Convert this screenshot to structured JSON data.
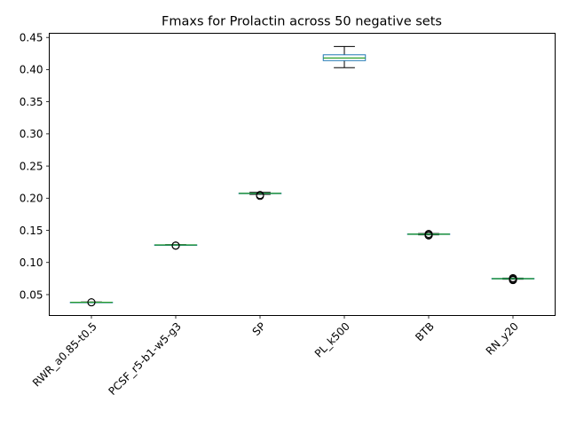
{
  "chart_data": {
    "type": "box",
    "title": "Fmaxs for Prolactin across 50 negative sets",
    "xlabel": "",
    "ylabel": "",
    "categories": [
      "RWR_a0.85-t0.5",
      "PCSF_r5-b1-w5-g3",
      "SP",
      "PL_k500",
      "BTB",
      "RN_y20"
    ],
    "boxes": [
      {
        "whislo": 0.0375,
        "q1": 0.0378,
        "med": 0.038,
        "q3": 0.0382,
        "whishi": 0.0385,
        "fliers": [
          0.038,
          0.038
        ]
      },
      {
        "whislo": 0.1265,
        "q1": 0.127,
        "med": 0.1272,
        "q3": 0.1274,
        "whishi": 0.1278,
        "fliers": [
          0.1262,
          0.1264,
          0.1262
        ]
      },
      {
        "whislo": 0.206,
        "q1": 0.207,
        "med": 0.2075,
        "q3": 0.2078,
        "whishi": 0.209,
        "fliers": [
          0.2035,
          0.205
        ]
      },
      {
        "whislo": 0.403,
        "q1": 0.414,
        "med": 0.418,
        "q3": 0.423,
        "whishi": 0.436,
        "fliers": []
      },
      {
        "whislo": 0.143,
        "q1": 0.1437,
        "med": 0.144,
        "q3": 0.1444,
        "whishi": 0.145,
        "fliers": [
          0.142,
          0.1425,
          0.143,
          0.1445
        ]
      },
      {
        "whislo": 0.074,
        "q1": 0.0745,
        "med": 0.0748,
        "q3": 0.0752,
        "whishi": 0.0757,
        "fliers": [
          0.0725,
          0.073,
          0.0735,
          0.075,
          0.0757
        ]
      }
    ],
    "yticks": [
      0.05,
      0.1,
      0.15,
      0.2,
      0.25,
      0.3,
      0.35,
      0.4,
      0.45
    ],
    "ytick_labels": [
      "0.05",
      "0.10",
      "0.15",
      "0.20",
      "0.25",
      "0.30",
      "0.35",
      "0.40",
      "0.45"
    ],
    "ylim": [
      0.0175,
      0.4565
    ],
    "grid": false,
    "colors": {
      "box": "#1f77b4",
      "median": "#2ca02c",
      "whisker": "#000000",
      "flier": "#000000"
    }
  }
}
